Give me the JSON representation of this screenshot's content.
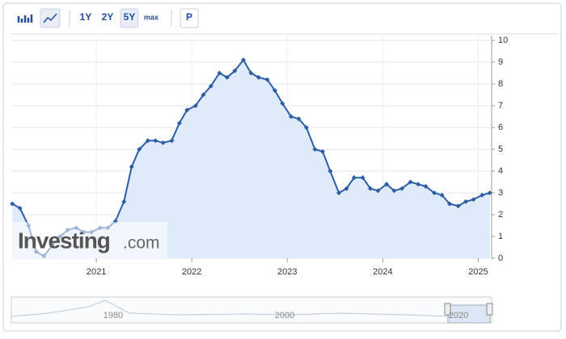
{
  "toolbar": {
    "ranges": [
      "1Y",
      "2Y",
      "5Y",
      "max"
    ],
    "active": 2,
    "extra": "P"
  },
  "chart_data": {
    "type": "area",
    "x": [
      2020.12,
      2020.2,
      2020.29,
      2020.37,
      2020.45,
      2020.54,
      2020.62,
      2020.7,
      2020.79,
      2020.87,
      2020.95,
      2021.04,
      2021.12,
      2021.2,
      2021.29,
      2021.37,
      2021.45,
      2021.54,
      2021.62,
      2021.7,
      2021.79,
      2021.87,
      2021.95,
      2022.04,
      2022.12,
      2022.2,
      2022.29,
      2022.37,
      2022.45,
      2022.54,
      2022.62,
      2022.7,
      2022.79,
      2022.87,
      2022.95,
      2023.04,
      2023.12,
      2023.2,
      2023.29,
      2023.37,
      2023.45,
      2023.54,
      2023.62,
      2023.7,
      2023.79,
      2023.87,
      2023.95,
      2024.04,
      2024.12,
      2024.2,
      2024.29,
      2024.37,
      2024.45,
      2024.54,
      2024.62,
      2024.7,
      2024.79,
      2024.87,
      2024.95,
      2025.04,
      2025.12
    ],
    "series": [
      {
        "color": "#2c5ea8",
        "values": [
          2.5,
          2.3,
          1.5,
          0.3,
          0.1,
          0.6,
          1.0,
          1.3,
          1.4,
          1.2,
          1.2,
          1.4,
          1.4,
          1.7,
          2.6,
          4.2,
          5.0,
          5.4,
          5.4,
          5.3,
          5.4,
          6.2,
          6.8,
          7.0,
          7.5,
          7.9,
          8.5,
          8.3,
          8.6,
          9.1,
          8.5,
          8.3,
          8.2,
          7.7,
          7.1,
          6.5,
          6.4,
          6.0,
          5.0,
          4.9,
          4.0,
          3.0,
          3.2,
          3.7,
          3.7,
          3.2,
          3.1,
          3.4,
          3.1,
          3.2,
          3.5,
          3.4,
          3.3,
          3.0,
          2.9,
          2.5,
          2.4,
          2.6,
          2.7,
          2.9,
          3.0
        ]
      }
    ],
    "xlim": [
      2020.11,
      2025.14
    ],
    "xticks": [
      2021,
      2022,
      2023,
      2024,
      2025
    ],
    "ylim": [
      0,
      10
    ],
    "yticks": [
      0,
      1,
      2,
      3,
      4,
      5,
      6,
      7,
      8,
      9,
      10
    ],
    "grid": true
  },
  "watermark": {
    "brand": "Investing",
    "suffix": ".com"
  },
  "navigator": {
    "labels": [
      "1980",
      "2000",
      "2020"
    ]
  }
}
